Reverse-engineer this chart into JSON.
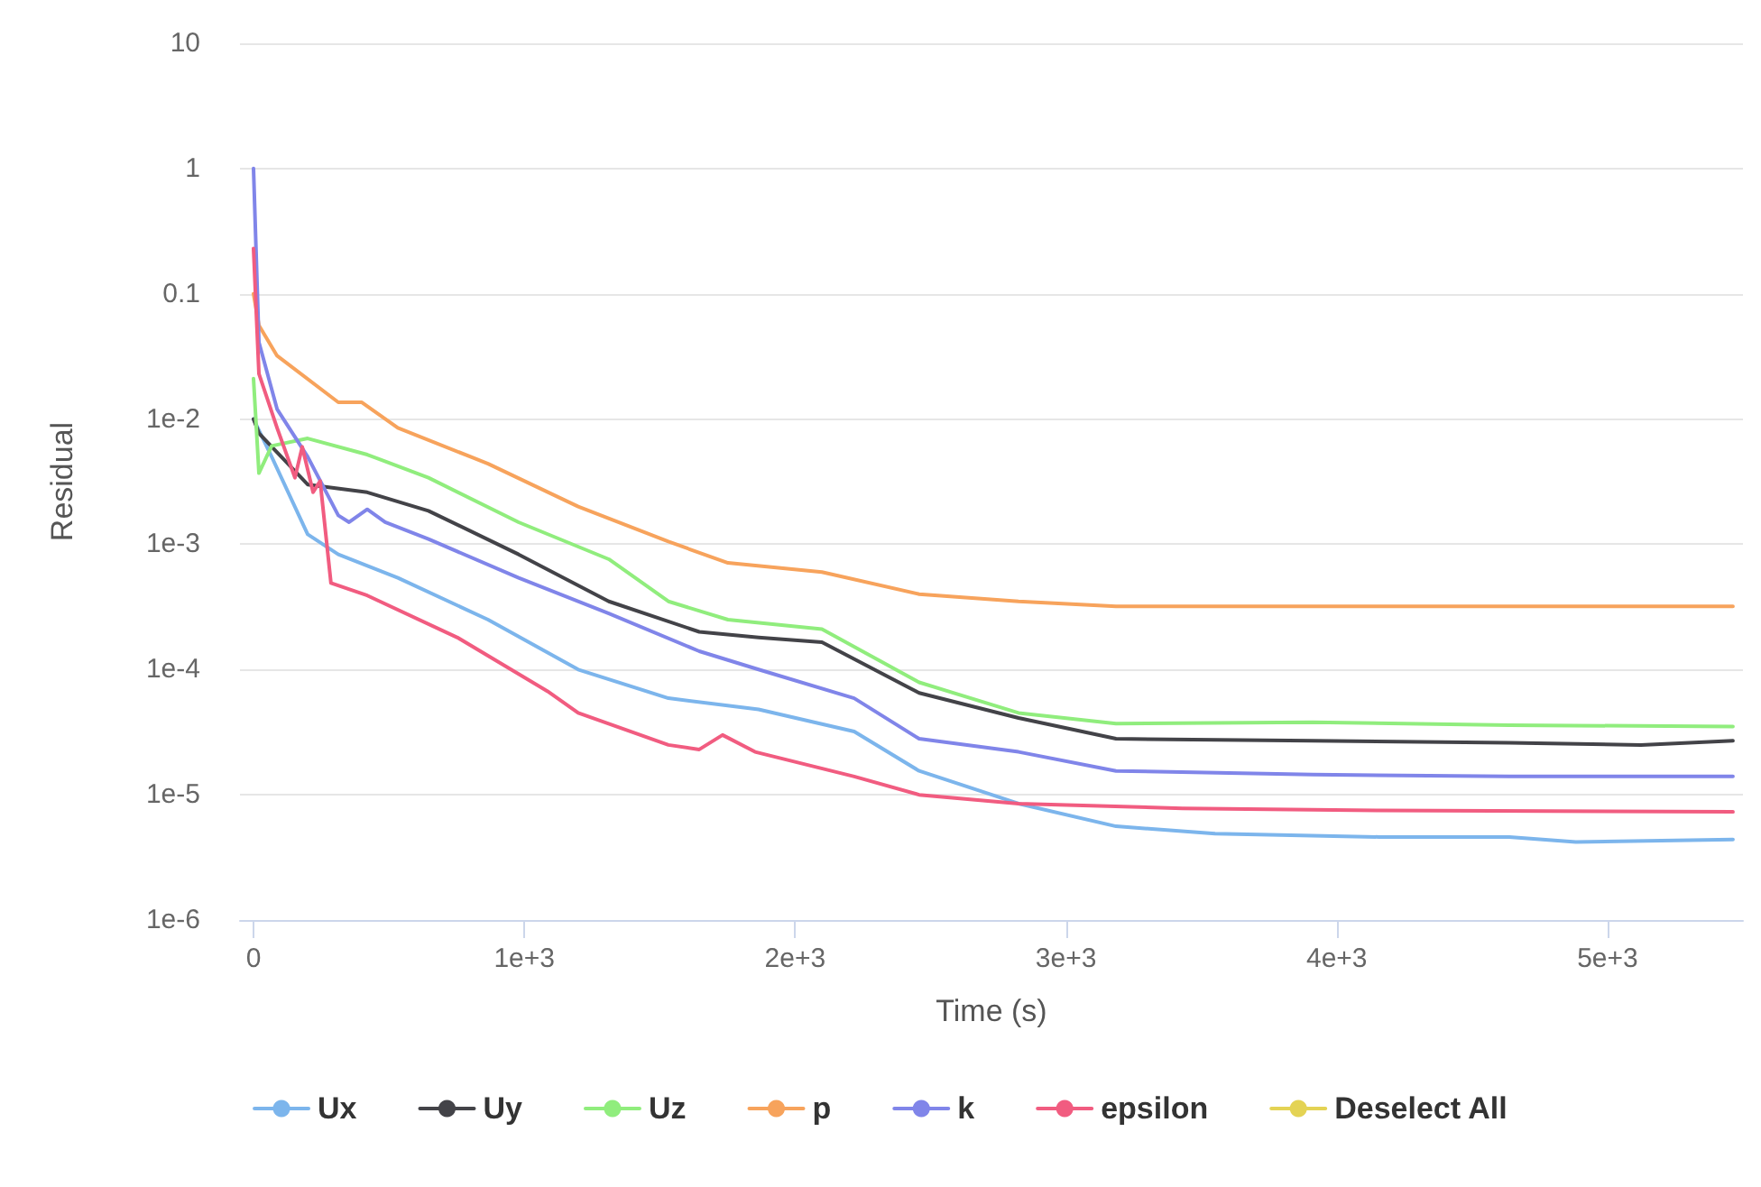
{
  "chart_data": {
    "type": "line",
    "xlabel": "Time (s)",
    "ylabel": "Residual",
    "log": "y",
    "grid": "y",
    "legend": "bottom",
    "marker": "none",
    "line_style": "solid",
    "xlim": [
      -50,
      5500
    ],
    "xticks": [
      0,
      {
        "value": 1000,
        "label": "1e+3"
      },
      {
        "value": 2000,
        "label": "2e+3"
      },
      {
        "value": 3000,
        "label": "3e+3"
      },
      {
        "value": 4000,
        "label": "4e+3"
      },
      {
        "value": 5000,
        "label": "5e+3"
      }
    ],
    "ylim": [
      1e-06,
      10
    ],
    "yticks": [
      {
        "value": 1e-06,
        "label": "1e-6"
      },
      {
        "value": 1e-05,
        "label": "1e-5"
      },
      {
        "value": 0.0001,
        "label": "1e-4"
      },
      {
        "value": 0.001,
        "label": "1e-3"
      },
      {
        "value": 0.01,
        "label": "1e-2"
      },
      0.1,
      1,
      10
    ],
    "series": [
      {
        "name": "Ux",
        "color": "#7cb5ec",
        "x": [
          0,
          67,
          200,
          313,
          533,
          866,
          1199,
          1532,
          1865,
          2218,
          2458,
          2825,
          3185,
          3551,
          4157,
          4637,
          4883,
          5463
        ],
        "values": [
          0.01,
          0.005,
          0.0012,
          0.00083,
          0.00054,
          0.00025,
          0.0001,
          5.9e-05,
          4.8e-05,
          3.2e-05,
          1.55e-05,
          8.5e-06,
          5.6e-06,
          4.9e-06,
          4.6e-06,
          4.6e-06,
          4.2e-06,
          4.4e-06
        ]
      },
      {
        "name": "Uy",
        "color": "#434348",
        "x": [
          0,
          20,
          200,
          420,
          646,
          979,
          1312,
          1646,
          1865,
          2099,
          2458,
          2825,
          3185,
          3911,
          4637,
          5123,
          5463
        ],
        "values": [
          0.01,
          0.0077,
          0.003,
          0.0026,
          0.00185,
          0.00083,
          0.00035,
          0.0002,
          0.00018,
          0.000165,
          6.5e-05,
          4.1e-05,
          2.8e-05,
          2.7e-05,
          2.6e-05,
          2.5e-05,
          2.7e-05
        ]
      },
      {
        "name": "Uz",
        "color": "#90ed7d",
        "x": [
          0,
          20,
          67,
          200,
          420,
          646,
          979,
          1312,
          1532,
          1752,
          2099,
          2458,
          2825,
          3185,
          3911,
          4637,
          5463
        ],
        "values": [
          0.021,
          0.0037,
          0.0061,
          0.007,
          0.0052,
          0.0034,
          0.0015,
          0.00076,
          0.00035,
          0.00025,
          0.00021,
          7.9e-05,
          4.5e-05,
          3.7e-05,
          3.8e-05,
          3.6e-05,
          3.5e-05
        ]
      },
      {
        "name": "p",
        "color": "#f7a35c",
        "x": [
          0,
          20,
          87,
          313,
          400,
          533,
          866,
          1199,
          1532,
          1752,
          2099,
          2458,
          2825,
          3185,
          3911,
          5463
        ],
        "values": [
          0.1,
          0.056,
          0.032,
          0.0136,
          0.0136,
          0.0085,
          0.0044,
          0.002,
          0.00105,
          0.00071,
          0.0006,
          0.0004,
          0.00035,
          0.00032,
          0.00032,
          0.00032
        ]
      },
      {
        "name": "k",
        "color": "#8085e9",
        "x": [
          0,
          20,
          87,
          200,
          313,
          353,
          420,
          486,
          646,
          979,
          1312,
          1646,
          1865,
          2218,
          2458,
          2825,
          3185,
          3911,
          4637,
          5463
        ],
        "values": [
          1,
          0.041,
          0.012,
          0.005,
          0.0017,
          0.0015,
          0.0019,
          0.0015,
          0.0011,
          0.00054,
          0.00028,
          0.00014,
          0.0001,
          5.9e-05,
          2.8e-05,
          2.2e-05,
          1.55e-05,
          1.45e-05,
          1.4e-05,
          1.4e-05
        ]
      },
      {
        "name": "epsilon",
        "color": "#f15c80",
        "x": [
          0,
          20,
          87,
          153,
          180,
          220,
          246,
          286,
          420,
          753,
          1086,
          1199,
          1532,
          1646,
          1732,
          1852,
          2218,
          2458,
          2825,
          3431,
          4157,
          5463
        ],
        "values": [
          0.23,
          0.023,
          0.0085,
          0.0034,
          0.006,
          0.0026,
          0.0032,
          0.00049,
          0.00039,
          0.00018,
          6.7e-05,
          4.5e-05,
          2.5e-05,
          2.3e-05,
          3e-05,
          2.2e-05,
          1.4e-05,
          1e-05,
          8.5e-06,
          7.8e-06,
          7.5e-06,
          7.3e-06
        ]
      },
      {
        "name": "Deselect All",
        "color": "#e4d354"
      }
    ]
  }
}
